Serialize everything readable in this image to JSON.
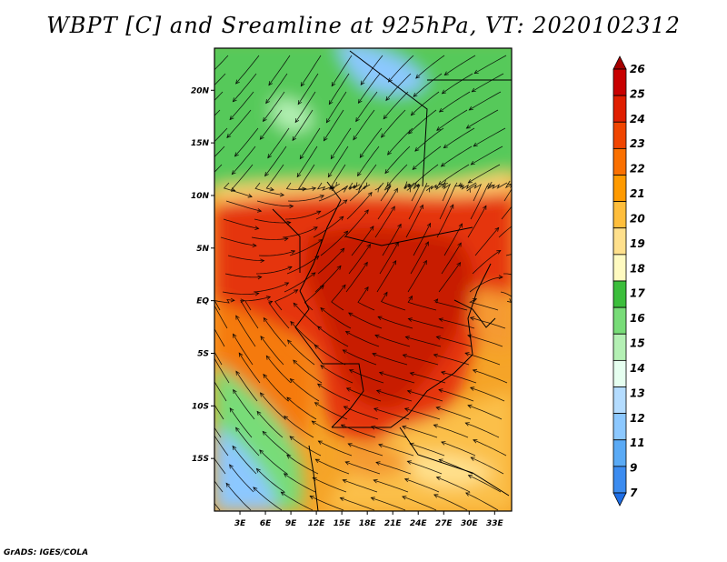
{
  "title": "WBPT [C] and Sreamline at 925hPa, VT: 2020102312",
  "credit": "GrADS: IGES/COLA",
  "chart_data": {
    "type": "heatmap",
    "variable": "WBPT [C]",
    "overlay": "Streamline",
    "level": "925hPa",
    "valid_time": "2020102312",
    "lon_range": [
      0,
      35
    ],
    "lat_range": [
      -20,
      24
    ],
    "x_ticks": [
      "3E",
      "6E",
      "9E",
      "12E",
      "15E",
      "18E",
      "21E",
      "24E",
      "27E",
      "30E",
      "33E"
    ],
    "x_tick_values": [
      3,
      6,
      9,
      12,
      15,
      18,
      21,
      24,
      27,
      30,
      33
    ],
    "y_ticks": [
      "20N",
      "15N",
      "10N",
      "5N",
      "EQ",
      "5S",
      "10S",
      "15S"
    ],
    "y_tick_values": [
      20,
      15,
      10,
      5,
      0,
      -5,
      -10,
      -15
    ],
    "colorbar": {
      "labels": [
        "26",
        "25",
        "24",
        "23",
        "22",
        "21",
        "20",
        "19",
        "18",
        "17",
        "16",
        "15",
        "14",
        "13",
        "12",
        "11",
        "9",
        "7"
      ],
      "colors": [
        "#a50000",
        "#c80000",
        "#e01e00",
        "#f04500",
        "#fa7000",
        "#ff9a00",
        "#ffbe3c",
        "#ffe08c",
        "#fffac0",
        "#3cbe3c",
        "#78dc78",
        "#b4f0b4",
        "#e6fff0",
        "#b4dcff",
        "#8cc8ff",
        "#5aaaf5",
        "#3c8cf0",
        "#1e6ee6"
      ]
    },
    "grid": false
  }
}
